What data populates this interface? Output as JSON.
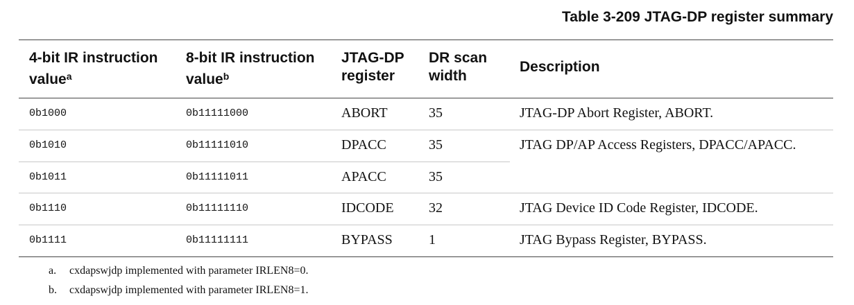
{
  "table": {
    "title": "Table 3-209 JTAG-DP register summary",
    "header": [
      {
        "text": "4-bit IR instruction value",
        "note": "a"
      },
      {
        "text": "8-bit IR instruction value",
        "note": "b"
      },
      {
        "text": "JTAG-DP register"
      },
      {
        "text": "DR scan width"
      },
      {
        "text": "Description"
      }
    ],
    "rows": [
      {
        "ir4": "0b1000",
        "ir8": "0b11111000",
        "register": "ABORT",
        "width": 35,
        "description": "JTAG-DP Abort Register, ABORT."
      },
      {
        "ir4": "0b1010",
        "ir8": "0b11111010",
        "register": "DPACC",
        "width": 35,
        "description": "JTAG DP/AP Access Registers, DPACC/APACC."
      },
      {
        "ir4": "0b1011",
        "ir8": "0b11111011",
        "register": "APACC",
        "width": 35
      },
      {
        "ir4": "0b1110",
        "ir8": "0b11111110",
        "register": "IDCODE",
        "width": 32,
        "description": "JTAG Device ID Code Register, IDCODE."
      },
      {
        "ir4": "0b1111",
        "ir8": "0b11111111",
        "register": "BYPASS",
        "width": 1,
        "description": "JTAG Bypass Register, BYPASS."
      }
    ],
    "footnotes": [
      {
        "label": "a.",
        "text": "cxdapswjdp implemented with parameter IRLEN8=0."
      },
      {
        "label": "b.",
        "text": "cxdapswjdp implemented with parameter IRLEN8=1."
      }
    ]
  }
}
